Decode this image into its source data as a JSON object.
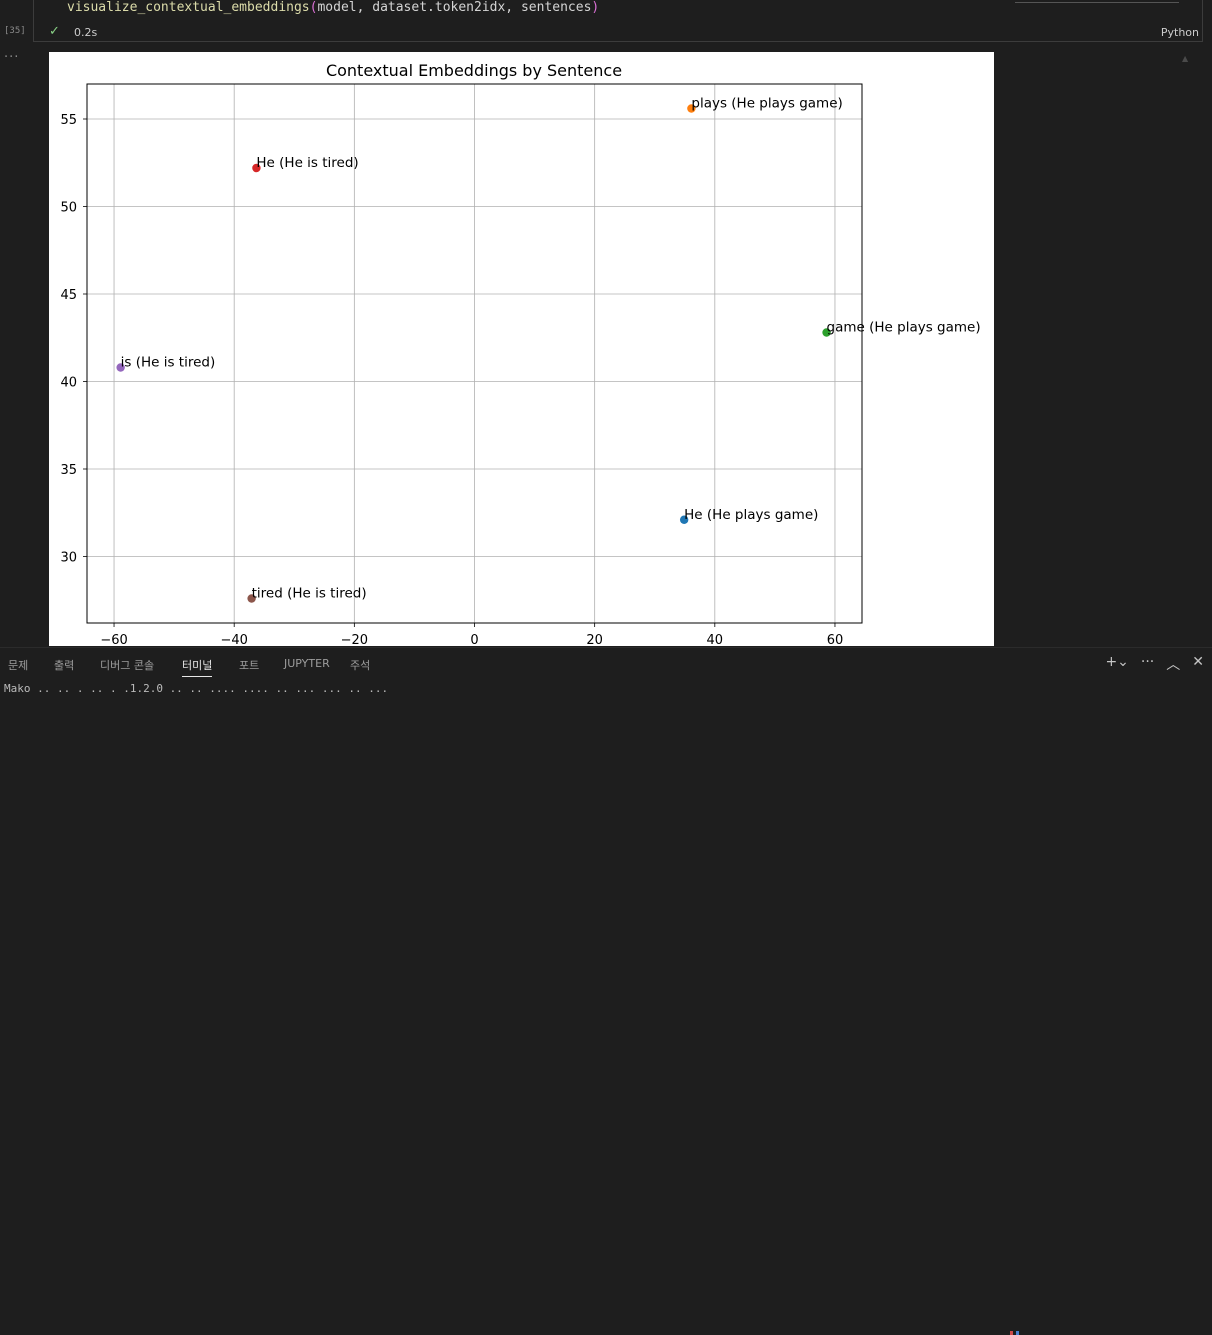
{
  "cell": {
    "code_fn": "visualize_contextual_embeddings",
    "code_open": "(",
    "code_args": "model, dataset.token2idx, sentences",
    "code_close": ")",
    "exec_count": "[35]",
    "exec_time": "0.2s",
    "language": "Python"
  },
  "chart_data": {
    "type": "scatter",
    "title": "Contextual Embeddings by Sentence",
    "xlabel": "",
    "ylabel": "",
    "xlim": [
      -64.5,
      64.5
    ],
    "ylim": [
      26.2,
      57.0
    ],
    "xticks": [
      -60,
      -40,
      -20,
      0,
      20,
      40,
      60
    ],
    "xtick_labels": [
      "−60",
      "−40",
      "−20",
      "0",
      "20",
      "40",
      "60"
    ],
    "yticks": [
      30,
      35,
      40,
      45,
      50,
      55
    ],
    "ytick_labels": [
      "30",
      "35",
      "40",
      "45",
      "50",
      "55"
    ],
    "grid": true,
    "points": [
      {
        "label": "He (He plays game)",
        "x": 34.9,
        "y": 32.1,
        "color": "#1f77b4"
      },
      {
        "label": "plays (He plays game)",
        "x": 36.1,
        "y": 55.6,
        "color": "#ff7f0e"
      },
      {
        "label": "game (He plays game)",
        "x": 58.6,
        "y": 42.8,
        "color": "#2ca02c"
      },
      {
        "label": "He (He is tired)",
        "x": -36.3,
        "y": 52.2,
        "color": "#d62728"
      },
      {
        "label": "is (He is tired)",
        "x": -58.9,
        "y": 40.8,
        "color": "#9467bd"
      },
      {
        "label": "tired (He is tired)",
        "x": -37.1,
        "y": 27.6,
        "color": "#8c564b"
      }
    ]
  },
  "panel": {
    "tabs": [
      "문제",
      "출력",
      "디버그 콘솔",
      "터미널",
      "포트",
      "JUPYTER",
      "주석"
    ],
    "active_tab": "터미널",
    "terminal_text": "Mako  .. .. .   .. . .1.2.0  .. .. .... .... .. ...  ... .. ..."
  }
}
